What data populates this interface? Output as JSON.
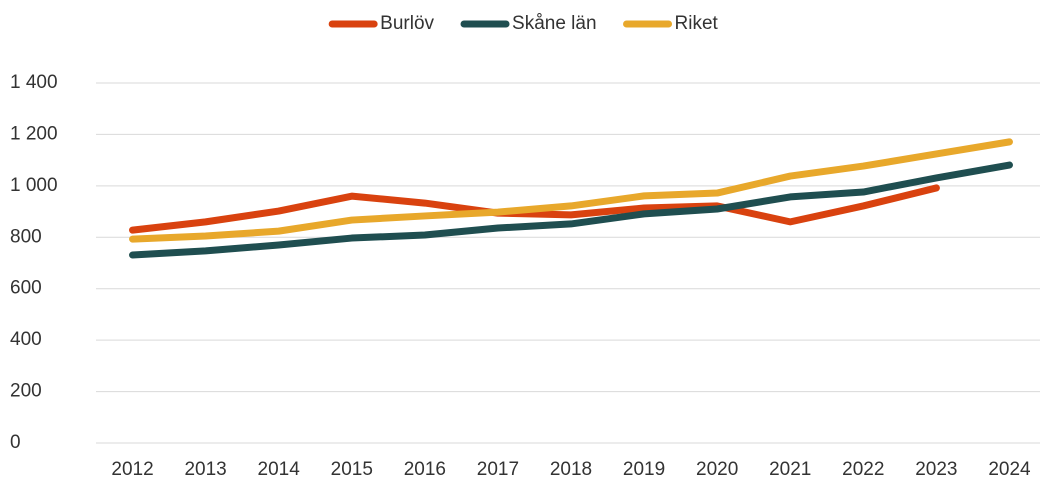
{
  "chart_data": {
    "type": "line",
    "categories": [
      "2012",
      "2013",
      "2014",
      "2015",
      "2016",
      "2017",
      "2018",
      "2019",
      "2020",
      "2021",
      "2022",
      "2023",
      "2024"
    ],
    "series": [
      {
        "name": "Burlöv",
        "color": "#d9420f",
        "values": [
          828,
          860,
          902,
          960,
          933,
          894,
          887,
          914,
          922,
          860,
          922,
          992,
          null
        ]
      },
      {
        "name": "Skåne län",
        "color": "#1f4e50",
        "values": [
          731,
          747,
          770,
          797,
          809,
          836,
          852,
          891,
          910,
          957,
          976,
          1031,
          1081
        ]
      },
      {
        "name": "Riket",
        "color": "#e8a82b",
        "values": [
          793,
          805,
          824,
          867,
          883,
          898,
          922,
          961,
          972,
          1038,
          1077,
          1124,
          1171
        ]
      }
    ],
    "ylim": [
      0,
      1400
    ],
    "yticks": [
      0,
      200,
      400,
      600,
      800,
      {
        "value": 1000,
        "label": "1 000"
      },
      {
        "value": 1200,
        "label": "1 200"
      },
      {
        "value": 1400,
        "label": "1 400"
      }
    ],
    "grid": true,
    "legend": "top"
  }
}
